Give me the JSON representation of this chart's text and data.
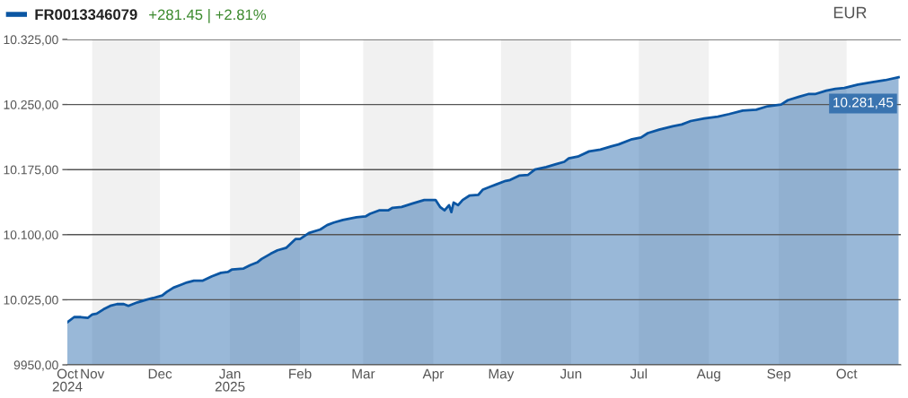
{
  "chart_data": {
    "type": "area",
    "subtitle": "+281.45 | +2.81%",
    "series": [
      {
        "name": "FR0013346079",
        "color": "#0b56a3",
        "x": [
          "2024-10-21",
          "2024-10-24",
          "2024-10-27",
          "2024-10-30",
          "2024-11-01",
          "2024-11-03",
          "2024-11-06",
          "2024-11-09",
          "2024-11-12",
          "2024-11-15",
          "2024-11-17",
          "2024-11-19",
          "2024-11-21",
          "2024-11-25",
          "2024-11-28",
          "2024-12-02",
          "2024-12-04",
          "2024-12-07",
          "2024-12-10",
          "2024-12-13",
          "2024-12-16",
          "2024-12-20",
          "2024-12-24",
          "2024-12-28",
          "2024-12-31",
          "2025-01-02",
          "2025-01-07",
          "2025-01-10",
          "2025-01-13",
          "2025-01-15",
          "2025-01-19",
          "2025-01-22",
          "2025-01-26",
          "2025-01-30",
          "2025-02-01",
          "2025-02-05",
          "2025-02-10",
          "2025-02-13",
          "2025-02-16",
          "2025-02-20",
          "2025-02-26",
          "2025-03-02",
          "2025-03-04",
          "2025-03-08",
          "2025-03-12",
          "2025-03-14",
          "2025-03-18",
          "2025-03-23",
          "2025-03-28",
          "2025-04-02",
          "2025-04-04",
          "2025-04-06",
          "2025-04-08",
          "2025-04-09",
          "2025-04-10",
          "2025-04-12",
          "2025-04-14",
          "2025-04-17",
          "2025-04-21",
          "2025-04-23",
          "2025-04-26",
          "2025-04-29",
          "2025-05-03",
          "2025-05-05",
          "2025-05-09",
          "2025-05-13",
          "2025-05-16",
          "2025-05-21",
          "2025-05-25",
          "2025-05-29",
          "2025-05-31",
          "2025-06-04",
          "2025-06-09",
          "2025-06-14",
          "2025-06-19",
          "2025-06-22",
          "2025-06-28",
          "2025-07-02",
          "2025-07-05",
          "2025-07-10",
          "2025-07-16",
          "2025-07-20",
          "2025-07-24",
          "2025-07-30",
          "2025-08-05",
          "2025-08-10",
          "2025-08-16",
          "2025-08-22",
          "2025-08-27",
          "2025-09-02",
          "2025-09-05",
          "2025-09-10",
          "2025-09-14",
          "2025-09-17",
          "2025-09-22",
          "2025-09-26",
          "2025-09-30",
          "2025-10-06",
          "2025-10-13",
          "2025-10-18",
          "2025-10-24"
        ],
        "values": [
          9999,
          10005,
          10005,
          10004,
          10008,
          10009,
          10014,
          10018,
          10020,
          10020,
          10018,
          10020,
          10022,
          10025,
          10027,
          10030,
          10034,
          10039,
          10042,
          10045,
          10047,
          10047,
          10052,
          10056,
          10057,
          10060,
          10061,
          10065,
          10068,
          10072,
          10078,
          10082,
          10085,
          10095,
          10095,
          10102,
          10106,
          10111,
          10114,
          10117,
          10120,
          10121,
          10124,
          10128,
          10128,
          10131,
          10132,
          10136,
          10140,
          10140,
          10132,
          10128,
          10134,
          10126,
          10137,
          10134,
          10140,
          10145,
          10146,
          10152,
          10155,
          10158,
          10162,
          10163,
          10168,
          10169,
          10175,
          10178,
          10181,
          10184,
          10188,
          10190,
          10196,
          10198,
          10202,
          10204,
          10210,
          10212,
          10217,
          10221,
          10225,
          10227,
          10231,
          10234,
          10236,
          10239,
          10243,
          10244,
          10248,
          10250,
          10255,
          10259,
          10262,
          10262,
          10266,
          10268,
          10269,
          10273,
          10276,
          10278,
          10281.45
        ]
      }
    ],
    "xlim": [
      "2024-10-21",
      "2025-10-25"
    ],
    "xticks": [
      {
        "value": "2024-10-21",
        "label": "Oct\n2024"
      },
      {
        "value": "2024-11-01",
        "label": "Nov"
      },
      {
        "value": "2024-12-01",
        "label": "Dec"
      },
      {
        "value": "2025-01-01",
        "label": "Jan\n2025"
      },
      {
        "value": "2025-02-01",
        "label": "Feb"
      },
      {
        "value": "2025-03-01",
        "label": "Mar"
      },
      {
        "value": "2025-04-01",
        "label": "Apr"
      },
      {
        "value": "2025-05-01",
        "label": "May"
      },
      {
        "value": "2025-06-01",
        "label": "Jun"
      },
      {
        "value": "2025-07-01",
        "label": "Jul"
      },
      {
        "value": "2025-08-01",
        "label": "Aug"
      },
      {
        "value": "2025-09-01",
        "label": "Sep"
      },
      {
        "value": "2025-10-01",
        "label": "Oct"
      }
    ],
    "ylim": [
      9950,
      10325
    ],
    "yticks": [
      {
        "value": 9950,
        "label": "9950,00"
      },
      {
        "value": 10025,
        "label": "10.025,00"
      },
      {
        "value": 10100,
        "label": "10.100,00"
      },
      {
        "value": 10175,
        "label": "10.175,00"
      },
      {
        "value": 10250,
        "label": "10.250,00"
      },
      {
        "value": 10325,
        "label": "10.325,00"
      }
    ],
    "grid": "y",
    "legend": "top left",
    "bands": [
      {
        "axis": "x",
        "from": "2024-11-01",
        "to": "2024-12-01",
        "color": "#f1f1f1"
      },
      {
        "axis": "x",
        "from": "2025-01-01",
        "to": "2025-02-01",
        "color": "#f1f1f1"
      },
      {
        "axis": "x",
        "from": "2025-03-01",
        "to": "2025-04-01",
        "color": "#f1f1f1"
      },
      {
        "axis": "x",
        "from": "2025-05-01",
        "to": "2025-06-01",
        "color": "#f1f1f1"
      },
      {
        "axis": "x",
        "from": "2025-07-01",
        "to": "2025-08-01",
        "color": "#f1f1f1"
      },
      {
        "axis": "x",
        "from": "2025-09-01",
        "to": "2025-10-01",
        "color": "#f1f1f1"
      }
    ],
    "annotations": [
      {
        "text": "10.281,45",
        "x": "2025-10-24",
        "y": 10281.45
      },
      "EUR"
    ]
  }
}
